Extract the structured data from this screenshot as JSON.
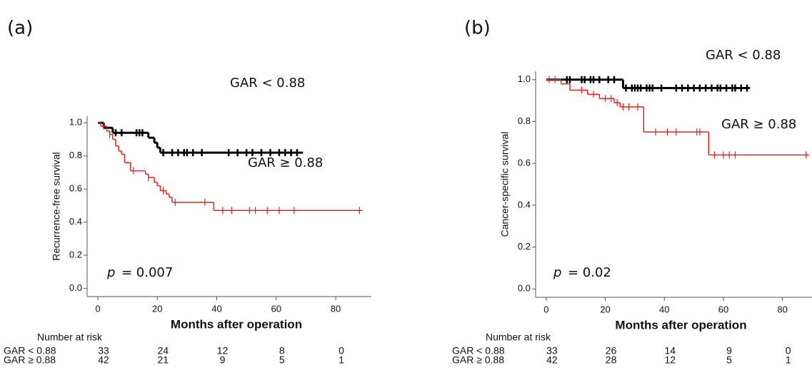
{
  "chart_data": [
    {
      "type": "step",
      "panel_label": "(a)",
      "y_label": "Recurrence-free survival",
      "x_label": "Months after operation",
      "xlim": [
        -3.6,
        92
      ],
      "ylim": [
        -0.05,
        1.04
      ],
      "xticks": [
        0,
        20,
        40,
        60,
        80
      ],
      "yticks": [
        {
          "value": 0,
          "label": "0.0"
        },
        {
          "value": 0.2,
          "label": "0.2"
        },
        {
          "value": 0.4,
          "label": "0.4"
        },
        {
          "value": 0.6,
          "label": "0.6"
        },
        {
          "value": 0.8,
          "label": "0.8"
        },
        {
          "value": 1,
          "label": "1.0"
        }
      ],
      "annotation": {
        "symbol": "p",
        "text": "= 0.007"
      },
      "series": [
        {
          "name": "GAR < 0.88",
          "color": "#000000",
          "x": [
            0,
            2,
            5,
            17,
            19,
            20,
            21,
            69
          ],
          "values": [
            1.0,
            0.97,
            0.94,
            0.91,
            0.88,
            0.85,
            0.82,
            0.82
          ],
          "censored": [
            6,
            8,
            13,
            14,
            15,
            22,
            25,
            27,
            29,
            30,
            32,
            35,
            44,
            47,
            50,
            52,
            55,
            58,
            61,
            63,
            65,
            67
          ]
        },
        {
          "name": "GAR ≥ 0.88",
          "color": "#e8231b",
          "x": [
            0,
            1,
            3,
            4,
            5,
            6,
            7,
            8,
            9,
            11,
            16,
            17,
            19,
            20,
            21,
            23,
            24,
            25,
            39,
            89
          ],
          "values": [
            1.0,
            0.98,
            0.95,
            0.93,
            0.9,
            0.86,
            0.83,
            0.81,
            0.76,
            0.71,
            0.69,
            0.67,
            0.64,
            0.62,
            0.59,
            0.57,
            0.55,
            0.52,
            0.47,
            0.47
          ],
          "censored": [
            2,
            4,
            12,
            17,
            22,
            26,
            36,
            42,
            45,
            51,
            53,
            57,
            61,
            66,
            88
          ]
        }
      ],
      "risk_table": {
        "title": "Number at risk",
        "rows": [
          {
            "label": "GAR < 0.88",
            "counts": [
              33,
              24,
              12,
              8,
              0
            ]
          },
          {
            "label": "GAR ≥ 0.88",
            "counts": [
              42,
              21,
              9,
              5,
              1
            ]
          }
        ]
      }
    },
    {
      "type": "step",
      "panel_label": "(b)",
      "y_label": "Cancer-specific survival",
      "x_label": "Months after operation",
      "xlim": [
        -3.6,
        90
      ],
      "ylim": [
        -0.04,
        1.04
      ],
      "xticks": [
        0,
        20,
        40,
        60,
        80
      ],
      "yticks": [
        {
          "value": 0,
          "label": "0.0"
        },
        {
          "value": 0.2,
          "label": "0.2"
        },
        {
          "value": 0.4,
          "label": "0.4"
        },
        {
          "value": 0.6,
          "label": "0.6"
        },
        {
          "value": 0.8,
          "label": "0.8"
        },
        {
          "value": 1,
          "label": "1.0"
        }
      ],
      "annotation": {
        "symbol": "p",
        "text": "= 0.02"
      },
      "series": [
        {
          "name": "GAR < 0.88",
          "color": "#000000",
          "x": [
            0,
            26,
            69
          ],
          "values": [
            1.0,
            0.96,
            0.96
          ],
          "censored": [
            7,
            8,
            12,
            13,
            15,
            16,
            18,
            21,
            23,
            27,
            29,
            30,
            31,
            32,
            34,
            35,
            36,
            39,
            44,
            46,
            48,
            50,
            52,
            54,
            56,
            58,
            59,
            61,
            63,
            64,
            66,
            68
          ]
        },
        {
          "name": "GAR ≥ 0.88",
          "color": "#e8231b",
          "x": [
            0,
            5,
            8,
            14,
            18,
            23,
            25,
            33,
            55,
            89
          ],
          "values": [
            1.0,
            0.98,
            0.95,
            0.93,
            0.91,
            0.89,
            0.87,
            0.75,
            0.64,
            0.64
          ],
          "censored": [
            1,
            3,
            12,
            16,
            20,
            22,
            24,
            26,
            28,
            31,
            37,
            41,
            44,
            51,
            52,
            57,
            60,
            62,
            64,
            88
          ]
        }
      ],
      "risk_table": {
        "title": "Number at risk",
        "rows": [
          {
            "label": "GAR < 0.88",
            "counts": [
              33,
              26,
              14,
              9,
              0
            ]
          },
          {
            "label": "GAR ≥ 0.88",
            "counts": [
              42,
              28,
              12,
              5,
              1
            ]
          }
        ]
      }
    }
  ]
}
